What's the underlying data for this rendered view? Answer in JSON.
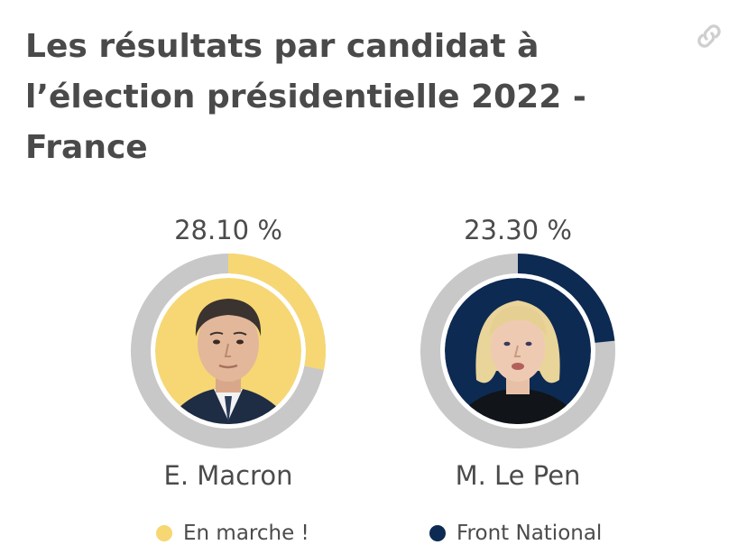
{
  "title": "Les résultats par candidat à l’élection présidentielle 2022 - France",
  "share_icon": "link-icon",
  "colors": {
    "ring_track": "#c8c8c8",
    "text": "#4b4b4b",
    "title": "#4a4a4a"
  },
  "candidates": [
    {
      "name": "E. Macron",
      "percent_label": "28.10 %",
      "percent": 28.1,
      "party": "En marche !",
      "color": "#f6d774",
      "photo_bg": "#f6d774"
    },
    {
      "name": "M. Le Pen",
      "percent_label": "23.30 %",
      "percent": 23.3,
      "party": "Front National",
      "color": "#0d2a52",
      "photo_bg": "#0d2a52"
    }
  ]
}
